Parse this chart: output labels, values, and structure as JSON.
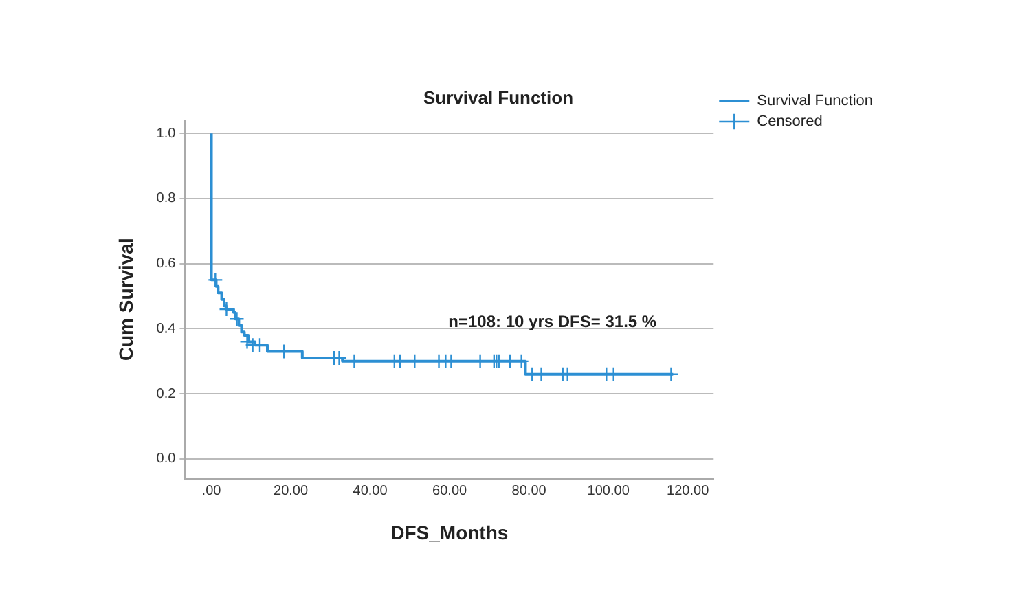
{
  "chart_data": {
    "type": "step",
    "title": "Survival Function",
    "xlabel": "DFS_Months",
    "ylabel": "Cum Survival",
    "annotations": [
      "n=108: 10 yrs DFS= 31.5 %"
    ],
    "xlim": [
      -6.6,
      126.5
    ],
    "ylim": [
      -0.06,
      1.04
    ],
    "xticks": [
      {
        "value": 0,
        "label": ".00"
      },
      {
        "value": 20,
        "label": "20.00"
      },
      {
        "value": 40,
        "label": "40.00"
      },
      {
        "value": 60,
        "label": "60.00"
      },
      {
        "value": 80,
        "label": "80.00"
      },
      {
        "value": 100,
        "label": "100.00"
      },
      {
        "value": 120,
        "label": "120.00"
      }
    ],
    "yticks": [
      {
        "value": 0,
        "label": "0.0"
      },
      {
        "value": 0.2,
        "label": "0.2"
      },
      {
        "value": 0.4,
        "label": "0.4"
      },
      {
        "value": 0.6,
        "label": "0.6"
      },
      {
        "value": 0.8,
        "label": "0.8"
      },
      {
        "value": 1,
        "label": "1.0"
      }
    ],
    "grid": "y",
    "legend": "top right",
    "line_style": "solid",
    "series": [
      {
        "name": "Survival Function",
        "color": "#2c8fd3",
        "x": [
          0,
          0,
          1.2,
          1.7,
          2.6,
          3.2,
          3.7,
          5.6,
          6.0,
          6.9,
          7.6,
          8.3,
          9.3,
          11,
          14.1,
          22.9,
          33,
          79.1,
          116.3
        ],
        "values": [
          1.0,
          0.55,
          0.53,
          0.51,
          0.49,
          0.47,
          0.46,
          0.45,
          0.43,
          0.41,
          0.39,
          0.38,
          0.36,
          0.35,
          0.33,
          0.31,
          0.3,
          0.26,
          0.26
        ]
      },
      {
        "name": "Censored",
        "type": "scatter",
        "marker": "cross",
        "color": "#2c8fd3",
        "x": [
          1.0,
          3.8,
          6.4,
          9.0,
          10.4,
          12.2,
          18.3,
          30.9,
          32.2,
          36,
          46.1,
          47.5,
          51.2,
          57.3,
          59,
          60.4,
          67.7,
          71.2,
          71.8,
          72.4,
          75.2,
          78.1,
          80.8,
          83.1,
          88.5,
          89.7,
          99.5,
          101.3,
          115.8
        ],
        "values": [
          0.55,
          0.46,
          0.43,
          0.36,
          0.35,
          0.35,
          0.33,
          0.31,
          0.31,
          0.3,
          0.3,
          0.3,
          0.3,
          0.3,
          0.3,
          0.3,
          0.3,
          0.3,
          0.3,
          0.3,
          0.3,
          0.3,
          0.26,
          0.26,
          0.26,
          0.26,
          0.26,
          0.26,
          0.26
        ]
      }
    ]
  }
}
